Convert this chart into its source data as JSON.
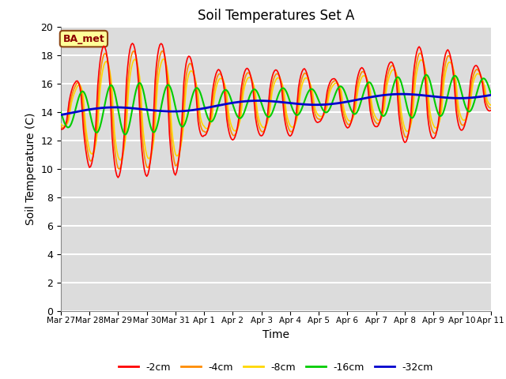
{
  "title": "Soil Temperatures Set A",
  "xlabel": "Time",
  "ylabel": "Soil Temperature (C)",
  "ylim": [
    0,
    20
  ],
  "yticks": [
    0,
    2,
    4,
    6,
    8,
    10,
    12,
    14,
    16,
    18,
    20
  ],
  "x_labels": [
    "Mar 27",
    "Mar 28",
    "Mar 29",
    "Mar 30",
    "Mar 31",
    "Apr 1",
    "Apr 2",
    "Apr 3",
    "Apr 4",
    "Apr 5",
    "Apr 6",
    "Apr 7",
    "Apr 8",
    "Apr 9",
    "Apr 10",
    "Apr 11"
  ],
  "annotation_text": "BA_met",
  "annotation_color": "#8B0000",
  "annotation_bg": "#FFFF99",
  "bg_color": "#DCDCDC",
  "grid_color": "#FFFFFF",
  "series_colors": [
    "#FF0000",
    "#FF8C00",
    "#FFD700",
    "#00CC00",
    "#0000CD"
  ],
  "series_labels": [
    "-2cm",
    "-4cm",
    "-8cm",
    "-16cm",
    "-32cm"
  ],
  "series_linewidths": [
    1.2,
    1.2,
    1.2,
    1.5,
    2.0
  ]
}
